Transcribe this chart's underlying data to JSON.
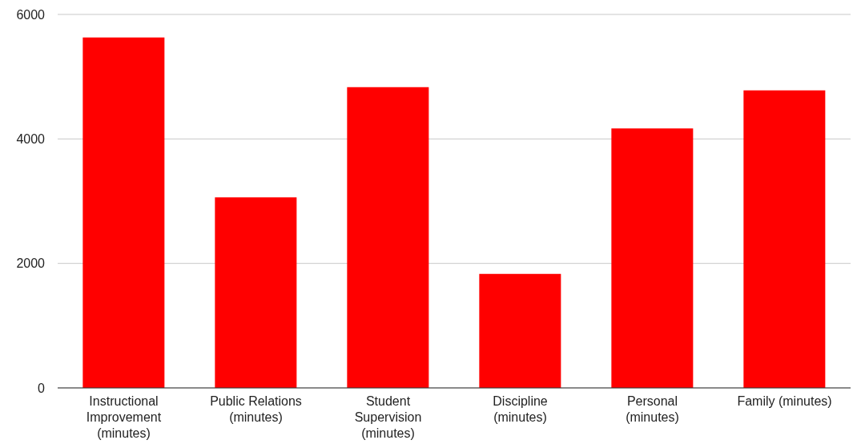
{
  "chart_data": {
    "type": "bar",
    "categories": [
      "Instructional Improvement (minutes)",
      "Public Relations (minutes)",
      "Student Supervision (minutes)",
      "Discipline (minutes)",
      "Personal (minutes)",
      "Family (minutes)"
    ],
    "values": [
      5630,
      3060,
      4830,
      1830,
      4170,
      4780
    ],
    "color": "#ff0000",
    "ylim": [
      0,
      6000
    ],
    "yticks": [
      0,
      2000,
      4000,
      6000
    ],
    "grid": "y",
    "legend": false
  }
}
